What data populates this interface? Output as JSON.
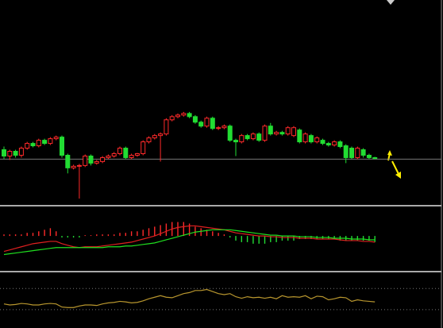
{
  "chart_data": [
    {
      "type": "candlestick",
      "up_color": "#ff2a2a",
      "down_color": "#22dd33",
      "ylim": [
        2,
        260
      ],
      "hline": 58,
      "hline_color": "#777777",
      "open": [
        70,
        62,
        68,
        63,
        72,
        78,
        75,
        82,
        78,
        84,
        86,
        63,
        47,
        49,
        50,
        62,
        53,
        55,
        60,
        62,
        65,
        72,
        60,
        63,
        65,
        80,
        85,
        88,
        90,
        108,
        112,
        114,
        116,
        112,
        105,
        100,
        110,
        97,
        98,
        100,
        82,
        80,
        88,
        84,
        90,
        82,
        100,
        90,
        92,
        90,
        88,
        95,
        80,
        88,
        80,
        82,
        78,
        76,
        80,
        75,
        72,
        60,
        70,
        63,
        60
      ],
      "close": [
        62,
        68,
        63,
        72,
        78,
        75,
        82,
        78,
        84,
        86,
        63,
        47,
        49,
        50,
        62,
        53,
        55,
        60,
        62,
        65,
        72,
        60,
        63,
        65,
        80,
        85,
        88,
        90,
        108,
        112,
        114,
        116,
        112,
        105,
        100,
        110,
        97,
        98,
        100,
        82,
        80,
        88,
        84,
        90,
        82,
        100,
        90,
        92,
        90,
        98,
        98,
        80,
        90,
        80,
        85,
        78,
        76,
        80,
        74,
        60,
        60,
        72,
        63,
        60,
        59
      ],
      "high": [
        74,
        70,
        70,
        74,
        80,
        80,
        84,
        84,
        86,
        88,
        88,
        65,
        51,
        52,
        64,
        64,
        57,
        62,
        64,
        67,
        74,
        74,
        65,
        66,
        82,
        87,
        90,
        92,
        110,
        114,
        116,
        118,
        118,
        114,
        107,
        112,
        112,
        100,
        102,
        102,
        84,
        90,
        90,
        92,
        92,
        102,
        104,
        94,
        94,
        100,
        100,
        97,
        92,
        90,
        87,
        84,
        80,
        82,
        82,
        77,
        74,
        74,
        72,
        65,
        61
      ],
      "low": [
        58,
        57,
        60,
        60,
        70,
        73,
        73,
        76,
        76,
        82,
        60,
        40,
        45,
        8,
        48,
        50,
        51,
        53,
        58,
        60,
        63,
        58,
        58,
        61,
        63,
        78,
        83,
        55,
        88,
        106,
        110,
        112,
        110,
        103,
        98,
        98,
        95,
        95,
        96,
        80,
        62,
        78,
        82,
        82,
        80,
        80,
        88,
        88,
        88,
        88,
        86,
        78,
        78,
        78,
        78,
        76,
        74,
        74,
        72,
        53,
        58,
        58,
        60,
        58,
        58
      ]
    },
    {
      "type": "macd",
      "ylim": [
        -22,
        18
      ],
      "pos_color": "#ff2a2a",
      "neg_color": "#22dd33",
      "zero_line": 0,
      "values": [
        1,
        1,
        1,
        1,
        2,
        2,
        3,
        4,
        5,
        3,
        -1,
        -1,
        -1,
        -1,
        0.5,
        0.5,
        1,
        1,
        1,
        1,
        2,
        2,
        3,
        3,
        4,
        5,
        6,
        7,
        8,
        9,
        9,
        9,
        8,
        6,
        5,
        4,
        3,
        2,
        1,
        -1,
        -3,
        -4,
        -4,
        -5,
        -5,
        -5,
        -4,
        -4,
        -3,
        -3,
        -3,
        -2,
        -2,
        -2,
        -2,
        -2,
        -2,
        -2,
        -3,
        -3,
        -3,
        -3,
        -3,
        -3,
        -4
      ],
      "series": [
        {
          "color": "#e02020",
          "values": [
            -10,
            -9,
            -8,
            -7,
            -6,
            -5,
            -4.5,
            -4,
            -3.5,
            -3.5,
            -5,
            -6,
            -7,
            -7.5,
            -7,
            -7,
            -7,
            -6.5,
            -6,
            -5.5,
            -5,
            -4.5,
            -4,
            -3,
            -2,
            -1,
            0,
            1.5,
            3,
            4.5,
            5.5,
            6,
            6.5,
            6.5,
            6,
            5.5,
            5,
            4.5,
            4,
            3,
            2,
            1.5,
            1,
            0.5,
            0,
            0,
            -0.5,
            -0.5,
            -1,
            -1,
            -1,
            -1.5,
            -1.5,
            -1.5,
            -2,
            -2,
            -2,
            -2,
            -2.5,
            -3,
            -3,
            -3,
            -3.5,
            -3.5,
            -4
          ]
        },
        {
          "color": "#20e020",
          "values": [
            -12,
            -11.5,
            -11,
            -10.5,
            -10,
            -9.5,
            -9,
            -8.5,
            -8,
            -7.5,
            -7.5,
            -7.5,
            -7.5,
            -7.5,
            -7.5,
            -7.5,
            -7.5,
            -7.5,
            -7,
            -7,
            -7,
            -6.5,
            -6.5,
            -6,
            -5.5,
            -5,
            -4.5,
            -3.5,
            -2.5,
            -1.5,
            -0.5,
            0.5,
            1.5,
            2.5,
            3,
            3.5,
            4,
            4,
            4,
            4,
            3.5,
            3,
            2.5,
            2,
            1.5,
            1,
            0.5,
            0.5,
            0,
            0,
            0,
            -0.5,
            -0.5,
            -0.5,
            -1,
            -1,
            -1,
            -1.5,
            -1.5,
            -1.5,
            -2,
            -2,
            -2,
            -2.5,
            -2.5
          ]
        }
      ]
    },
    {
      "type": "line",
      "ylim": [
        0,
        100
      ],
      "levels": [
        72,
        31
      ],
      "level_color": "#777777",
      "color": "#b8962e",
      "values": [
        42,
        40,
        41,
        43,
        42,
        40,
        40,
        42,
        43,
        42,
        36,
        35,
        35,
        38,
        40,
        40,
        39,
        42,
        44,
        45,
        47,
        46,
        44,
        45,
        48,
        52,
        55,
        58,
        55,
        54,
        58,
        62,
        64,
        68,
        68,
        70,
        66,
        62,
        60,
        62,
        56,
        53,
        56,
        54,
        55,
        53,
        55,
        52,
        58,
        55,
        56,
        55,
        58,
        52,
        57,
        56,
        50,
        52,
        55,
        54,
        47,
        50,
        48,
        47,
        46
      ]
    }
  ]
}
